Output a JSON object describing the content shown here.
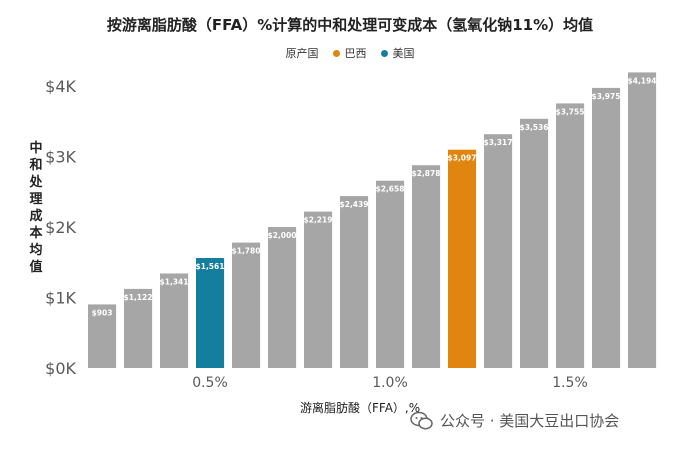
{
  "chart_data": {
    "type": "bar",
    "title": "按游离脂肪酸（FFA）%计算的中和处理可变成本（氢氧化钠11%）均值",
    "ylabel": "中和处理成本均值",
    "xlabel": "游离脂肪酸（FFA）,%",
    "ylim": [
      0,
      4200
    ],
    "y_ticks": [
      "$0K",
      "$1K",
      "$2K",
      "$3K",
      "$4K"
    ],
    "y_tick_values": [
      0,
      1000,
      2000,
      3000,
      4000
    ],
    "x_ticks": [
      "0.5%",
      "1.0%",
      "1.5%"
    ],
    "x_tick_bar_index": [
      3,
      8,
      13
    ],
    "grid": false,
    "legend_position": "top-center",
    "legend": [
      {
        "name": "原产国",
        "color": ""
      },
      {
        "name": "巴西",
        "color": "#e0850f"
      },
      {
        "name": "美国",
        "color": "#137e9e"
      }
    ],
    "colors": {
      "default": "#a6a6a6",
      "brazil": "#e0850f",
      "usa": "#137e9e"
    },
    "values": [
      903,
      1122,
      1341,
      1561,
      1780,
      2000,
      2219,
      2439,
      2658,
      2878,
      3097,
      3317,
      3536,
      3755,
      3975,
      4194
    ],
    "labels": [
      "$903",
      "$1,122",
      "$1,341",
      "$1,561",
      "$1,780",
      "$2,000",
      "$2,219",
      "$2,439",
      "$2,658",
      "$2,878",
      "$3,097",
      "$3,317",
      "$3,536",
      "$3,755",
      "$3,975",
      "$4,194"
    ],
    "highlight": [
      {
        "index": 3,
        "group": "usa"
      },
      {
        "index": 10,
        "group": "brazil"
      }
    ]
  },
  "watermark": {
    "text": "公众号 · 美国大豆出口协会",
    "icon": "wechat-icon"
  }
}
